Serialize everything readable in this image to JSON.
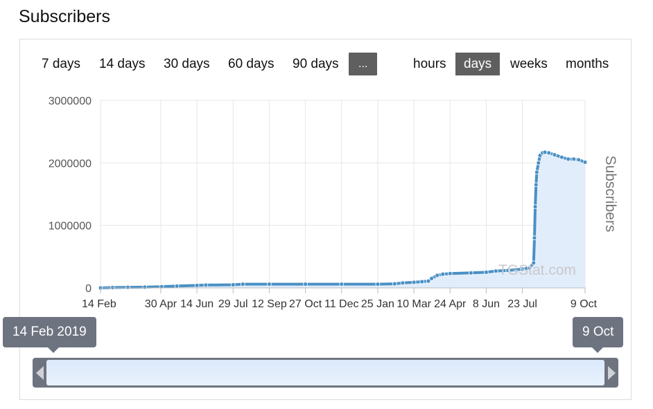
{
  "page_title": "Subscribers",
  "range_buttons": [
    "7 days",
    "14 days",
    "30 days",
    "60 days",
    "90 days",
    "..."
  ],
  "unit_buttons": [
    "hours",
    "days",
    "weeks",
    "months"
  ],
  "active_unit": "days",
  "watermark": "TGStat.com",
  "navigator": {
    "start_label": "14 Feb 2019",
    "end_label": "9 Oct"
  },
  "colors": {
    "line": "#4a90c4",
    "area": "#ddeafb",
    "button_active": "#5f5f5f",
    "navigator": "#6e7380"
  },
  "chart_data": {
    "type": "area",
    "title": "",
    "xlabel": "",
    "ylabel": "Subscribers",
    "x_type": "date",
    "xlim": [
      "2019-02-14",
      "2020-10-09"
    ],
    "ylim": [
      0,
      3000000
    ],
    "yticks": [
      0,
      1000000,
      2000000,
      3000000
    ],
    "ytick_labels": [
      "0",
      "1000000",
      "2000000",
      "3000000"
    ],
    "xticks": [
      "2019-02-14",
      "2019-04-30",
      "2019-06-14",
      "2019-07-29",
      "2019-09-12",
      "2019-10-27",
      "2019-12-11",
      "2020-01-25",
      "2020-03-10",
      "2020-04-24",
      "2020-06-08",
      "2020-07-23",
      "2020-10-09"
    ],
    "xtick_labels": [
      "14 Feb",
      "30 Apr",
      "14 Jun",
      "29 Jul",
      "12 Sep",
      "27 Oct",
      "11 Dec",
      "25 Jan",
      "10 Mar",
      "24 Apr",
      "8 Jun",
      "23 Jul",
      "9 Oct"
    ],
    "grid": true,
    "series": [
      {
        "name": "",
        "points": [
          [
            "2019-02-14",
            0
          ],
          [
            "2019-03-01",
            5000
          ],
          [
            "2019-03-20",
            10000
          ],
          [
            "2019-04-10",
            12000
          ],
          [
            "2019-05-01",
            20000
          ],
          [
            "2019-05-20",
            30000
          ],
          [
            "2019-06-14",
            40000
          ],
          [
            "2019-06-25",
            45000
          ],
          [
            "2019-07-29",
            50000
          ],
          [
            "2019-08-10",
            60000
          ],
          [
            "2019-09-12",
            60000
          ],
          [
            "2019-10-27",
            60000
          ],
          [
            "2019-12-11",
            60000
          ],
          [
            "2020-01-25",
            60000
          ],
          [
            "2020-02-15",
            65000
          ],
          [
            "2020-02-25",
            80000
          ],
          [
            "2020-03-10",
            90000
          ],
          [
            "2020-03-20",
            100000
          ],
          [
            "2020-03-28",
            110000
          ],
          [
            "2020-04-01",
            150000
          ],
          [
            "2020-04-08",
            200000
          ],
          [
            "2020-04-15",
            220000
          ],
          [
            "2020-04-24",
            230000
          ],
          [
            "2020-05-20",
            240000
          ],
          [
            "2020-06-08",
            250000
          ],
          [
            "2020-06-20",
            270000
          ],
          [
            "2020-07-05",
            280000
          ],
          [
            "2020-07-23",
            300000
          ],
          [
            "2020-08-01",
            320000
          ],
          [
            "2020-08-06",
            400000
          ],
          [
            "2020-08-07",
            800000
          ],
          [
            "2020-08-08",
            1300000
          ],
          [
            "2020-08-09",
            1650000
          ],
          [
            "2020-08-10",
            1850000
          ],
          [
            "2020-08-12",
            2000000
          ],
          [
            "2020-08-14",
            2120000
          ],
          [
            "2020-08-17",
            2160000
          ],
          [
            "2020-08-20",
            2170000
          ],
          [
            "2020-08-25",
            2160000
          ],
          [
            "2020-09-01",
            2130000
          ],
          [
            "2020-09-10",
            2090000
          ],
          [
            "2020-09-18",
            2060000
          ],
          [
            "2020-09-25",
            2060000
          ],
          [
            "2020-10-01",
            2050000
          ],
          [
            "2020-10-09",
            2010000
          ]
        ]
      }
    ]
  }
}
